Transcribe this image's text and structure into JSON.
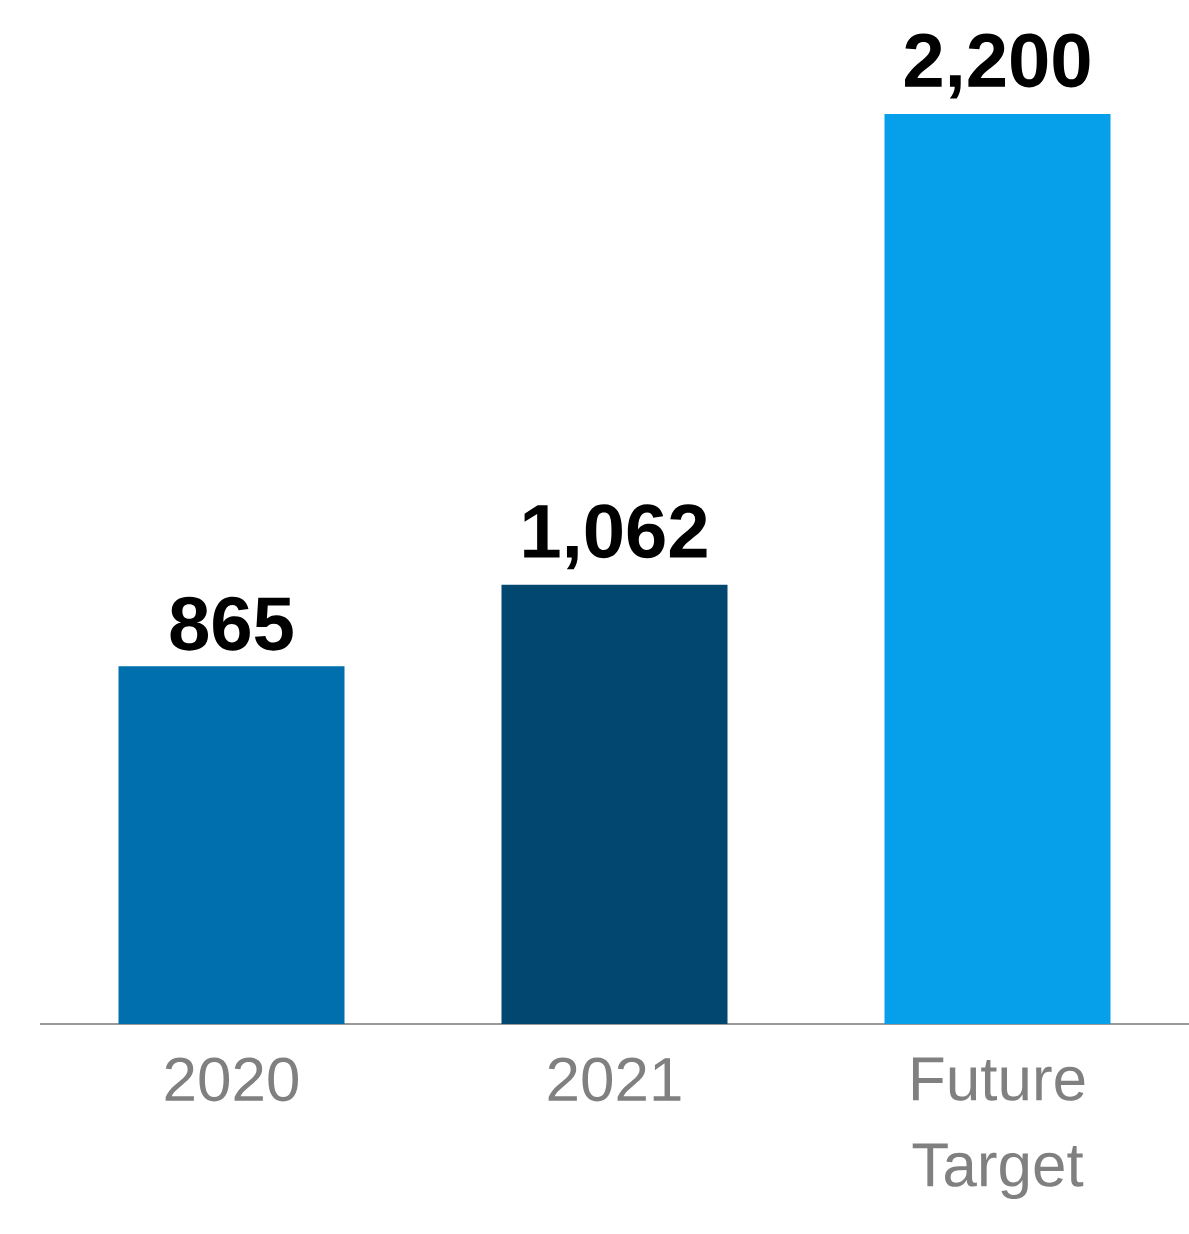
{
  "chart_data": {
    "type": "bar",
    "categories": [
      "2020",
      "2021",
      "Future Target"
    ],
    "values": [
      865,
      1062,
      2200
    ],
    "colors": [
      "#006fad",
      "#02476f",
      "#069fe9"
    ],
    "value_labels": [
      "865",
      "1,062",
      "2,200"
    ]
  }
}
